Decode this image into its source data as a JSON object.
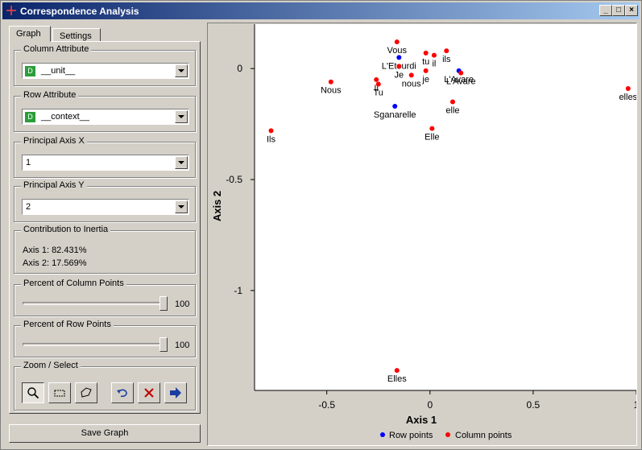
{
  "window": {
    "title": "Correspondence Analysis",
    "controls": [
      "_",
      "□",
      "×"
    ]
  },
  "tabs": [
    {
      "label": "Graph",
      "active": true
    },
    {
      "label": "Settings",
      "active": false
    }
  ],
  "column_attribute": {
    "title": "Column Attribute",
    "badge": "D",
    "value": "__unit__"
  },
  "row_attribute": {
    "title": "Row Attribute",
    "badge": "D",
    "value": "__context__"
  },
  "principal_axis_x": {
    "title": "Principal Axis X",
    "value": "1"
  },
  "principal_axis_y": {
    "title": "Principal Axis Y",
    "value": "2"
  },
  "inertia": {
    "title": "Contribution to Inertia",
    "axis1": "Axis 1: 82.431%",
    "axis2": "Axis 2: 17.569%"
  },
  "column_points_pct": {
    "title": "Percent of Column Points",
    "value": 100,
    "label": "100"
  },
  "row_points_pct": {
    "title": "Percent of Row Points",
    "value": 100,
    "label": "100"
  },
  "zoom_select": {
    "title": "Zoom / Select",
    "tools": [
      "zoom-icon",
      "rect-select-icon",
      "lasso-icon",
      "undo-icon",
      "remove-icon",
      "send-icon"
    ]
  },
  "save_button": "Save Graph",
  "colors": {
    "row_points": "#0000ff",
    "column_points": "#ff0000",
    "title_bar": "#0a246a"
  },
  "chart_data": {
    "type": "scatter",
    "xlabel": "Axis 1",
    "ylabel": "Axis 2",
    "xlim": [
      -0.85,
      1.0
    ],
    "ylim": [
      -1.45,
      0.2
    ],
    "xticks": [
      -0.5,
      0,
      0.5,
      1
    ],
    "xtick_labels": [
      "-0.5",
      "0",
      "0.5",
      "1"
    ],
    "yticks": [
      0,
      -0.5,
      -1
    ],
    "ytick_labels": [
      "0",
      "-0.5",
      "-1"
    ],
    "grid": false,
    "legend": {
      "placement": "bottom",
      "entries": [
        "Row points",
        "Column points"
      ]
    },
    "series": [
      {
        "name": "Row points",
        "color": "#0000ff",
        "points": [
          {
            "label": "L'Etourdi",
            "x": -0.15,
            "y": 0.05
          },
          {
            "label": "Sganarelle",
            "x": -0.17,
            "y": -0.17
          },
          {
            "label": "L'Avare",
            "x": 0.14,
            "y": -0.01
          }
        ]
      },
      {
        "name": "Column points",
        "color": "#ff0000",
        "points": [
          {
            "label": "Vous",
            "x": -0.16,
            "y": 0.12
          },
          {
            "label": "tu",
            "x": -0.02,
            "y": 0.07
          },
          {
            "label": "ils",
            "x": 0.08,
            "y": 0.08
          },
          {
            "label": "il",
            "x": 0.02,
            "y": 0.06
          },
          {
            "label": "Je",
            "x": -0.15,
            "y": 0.01
          },
          {
            "label": "nous",
            "x": -0.09,
            "y": -0.03
          },
          {
            "label": "je",
            "x": -0.02,
            "y": -0.01
          },
          {
            "label": "L'Avare",
            "x": 0.15,
            "y": -0.02
          },
          {
            "label": "Nous",
            "x": -0.48,
            "y": -0.06
          },
          {
            "label": "Il",
            "x": -0.26,
            "y": -0.05
          },
          {
            "label": "Tu",
            "x": -0.25,
            "y": -0.07
          },
          {
            "label": "elle",
            "x": 0.11,
            "y": -0.15
          },
          {
            "label": "elles",
            "x": 0.96,
            "y": -0.09
          },
          {
            "label": "Ils",
            "x": -0.77,
            "y": -0.28
          },
          {
            "label": "Elle",
            "x": 0.01,
            "y": -0.27
          },
          {
            "label": "Elles",
            "x": -0.16,
            "y": -1.36
          }
        ]
      }
    ]
  }
}
